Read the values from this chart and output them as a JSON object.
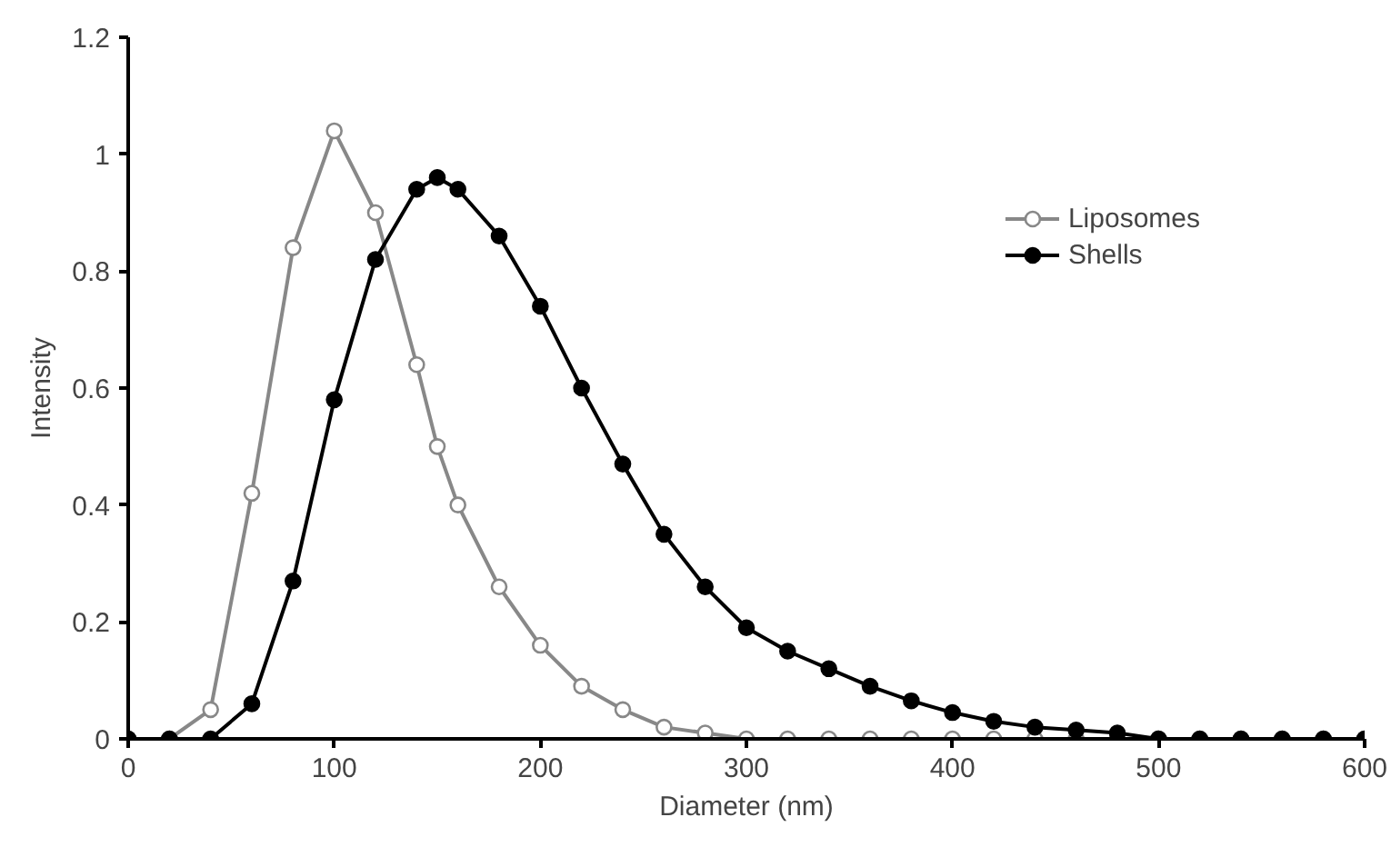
{
  "chart_data": {
    "type": "line",
    "xlabel": "Diameter (nm)",
    "ylabel": "Intensity",
    "xlim": [
      0,
      600
    ],
    "ylim": [
      0,
      1.2
    ],
    "xticks": [
      0,
      100,
      200,
      300,
      400,
      500,
      600
    ],
    "yticks": [
      0,
      0.2,
      0.4,
      0.6,
      0.8,
      1,
      1.2
    ],
    "grid": false,
    "legend": "top right",
    "marker": "circle",
    "line_style": "solid",
    "series": [
      {
        "name": "Liposomes",
        "color": "#888888",
        "x": [
          0,
          20,
          40,
          60,
          80,
          100,
          120,
          140,
          150,
          160,
          180,
          200,
          220,
          240,
          260,
          280,
          300,
          320,
          340,
          360,
          380,
          400,
          420,
          440,
          460,
          480,
          500,
          520,
          540,
          560,
          580,
          600
        ],
        "values": [
          0,
          0,
          0.05,
          0.42,
          0.84,
          1.04,
          0.9,
          0.64,
          0.5,
          0.4,
          0.26,
          0.16,
          0.09,
          0.05,
          0.02,
          0.01,
          0,
          0,
          0,
          0,
          0,
          0,
          0,
          0,
          0,
          0,
          0,
          0,
          0,
          0,
          0,
          0
        ]
      },
      {
        "name": "Shells",
        "color": "#000000",
        "x": [
          0,
          20,
          40,
          60,
          80,
          100,
          120,
          140,
          150,
          160,
          180,
          200,
          220,
          240,
          260,
          280,
          300,
          320,
          340,
          360,
          380,
          400,
          420,
          440,
          460,
          480,
          500,
          520,
          540,
          560,
          580,
          600
        ],
        "values": [
          0,
          0,
          0,
          0.06,
          0.27,
          0.58,
          0.82,
          0.94,
          0.96,
          0.94,
          0.86,
          0.74,
          0.6,
          0.47,
          0.35,
          0.26,
          0.19,
          0.15,
          0.12,
          0.09,
          0.065,
          0.045,
          0.03,
          0.02,
          0.015,
          0.01,
          0,
          0,
          0,
          0,
          0,
          0
        ]
      }
    ]
  }
}
